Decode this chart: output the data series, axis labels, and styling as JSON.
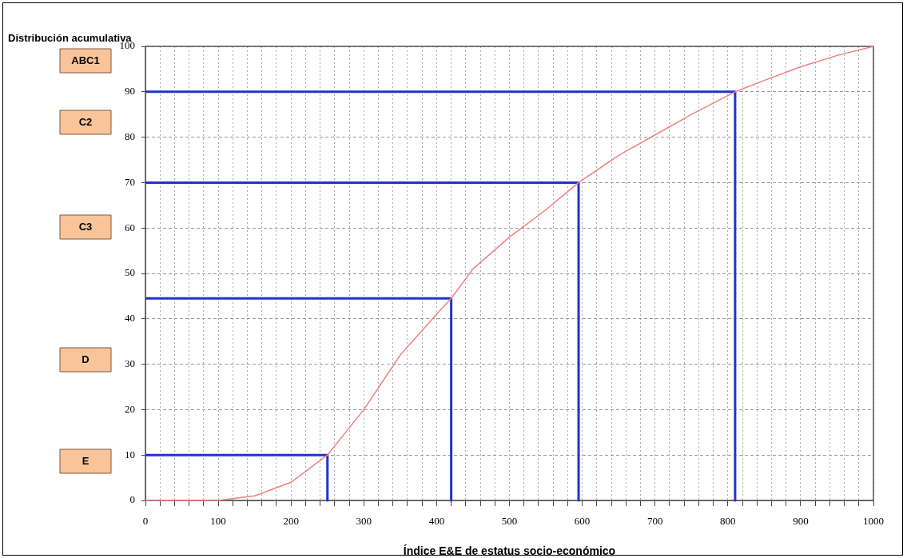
{
  "chart_data": {
    "type": "line",
    "title": "Distribución acumulativa",
    "xlabel": "Índice E&E de estatus socio-económico",
    "xlim": [
      0,
      1000
    ],
    "ylim": [
      0,
      100
    ],
    "xticks": [
      0,
      {
        "value": 20,
        "label": null
      },
      {
        "value": 40,
        "label": null
      },
      {
        "value": 60,
        "label": null
      },
      {
        "value": 80,
        "label": null
      },
      100,
      {
        "value": 120,
        "label": null
      },
      {
        "value": 140,
        "label": null
      },
      {
        "value": 160,
        "label": null
      },
      {
        "value": 180,
        "label": null
      },
      200,
      {
        "value": 220,
        "label": null
      },
      {
        "value": 240,
        "label": null
      },
      {
        "value": 260,
        "label": null
      },
      {
        "value": 280,
        "label": null
      },
      300,
      {
        "value": 320,
        "label": null
      },
      {
        "value": 340,
        "label": null
      },
      {
        "value": 360,
        "label": null
      },
      {
        "value": 380,
        "label": null
      },
      400,
      {
        "value": 420,
        "label": null
      },
      {
        "value": 440,
        "label": null
      },
      {
        "value": 460,
        "label": null
      },
      {
        "value": 480,
        "label": null
      },
      500,
      {
        "value": 520,
        "label": null
      },
      {
        "value": 540,
        "label": null
      },
      {
        "value": 560,
        "label": null
      },
      {
        "value": 580,
        "label": null
      },
      600,
      {
        "value": 620,
        "label": null
      },
      {
        "value": 640,
        "label": null
      },
      {
        "value": 660,
        "label": null
      },
      {
        "value": 680,
        "label": null
      },
      700,
      {
        "value": 720,
        "label": null
      },
      {
        "value": 740,
        "label": null
      },
      {
        "value": 760,
        "label": null
      },
      {
        "value": 780,
        "label": null
      },
      800,
      {
        "value": 820,
        "label": null
      },
      {
        "value": 840,
        "label": null
      },
      {
        "value": 860,
        "label": null
      },
      {
        "value": 880,
        "label": null
      },
      900,
      {
        "value": 920,
        "label": null
      },
      {
        "value": 940,
        "label": null
      },
      {
        "value": 960,
        "label": null
      },
      {
        "value": 980,
        "label": null
      },
      1000
    ],
    "yticks": [
      0,
      10,
      20,
      30,
      40,
      50,
      60,
      70,
      80,
      90,
      100
    ],
    "grid": true,
    "legend": false,
    "marker": "none",
    "line_style": "solid",
    "series": [
      {
        "color": "#f08080",
        "x": [
          0,
          100,
          150,
          200,
          250,
          300,
          350,
          400,
          420,
          450,
          500,
          550,
          595,
          650,
          700,
          750,
          810,
          850,
          900,
          950,
          1000
        ],
        "values": [
          0,
          0,
          1,
          4,
          10,
          20,
          32,
          41,
          44.5,
          51,
          58,
          64,
          70,
          76,
          80.5,
          85,
          90,
          92.5,
          95.5,
          98,
          100
        ]
      },
      {
        "color": "#2233cc",
        "x": [
          0,
          250,
          250
        ],
        "values": [
          10,
          10,
          0
        ]
      },
      {
        "color": "#2233cc",
        "x": [
          0,
          420,
          420
        ],
        "values": [
          44.5,
          44.5,
          0
        ]
      },
      {
        "color": "#2233cc",
        "x": [
          0,
          595,
          595
        ],
        "values": [
          70,
          70,
          0
        ]
      },
      {
        "color": "#2233cc",
        "x": [
          0,
          810,
          810
        ],
        "values": [
          90,
          90,
          0
        ]
      }
    ],
    "annotations": [
      "ABC1",
      "C2",
      "C3",
      "D",
      "E"
    ]
  }
}
